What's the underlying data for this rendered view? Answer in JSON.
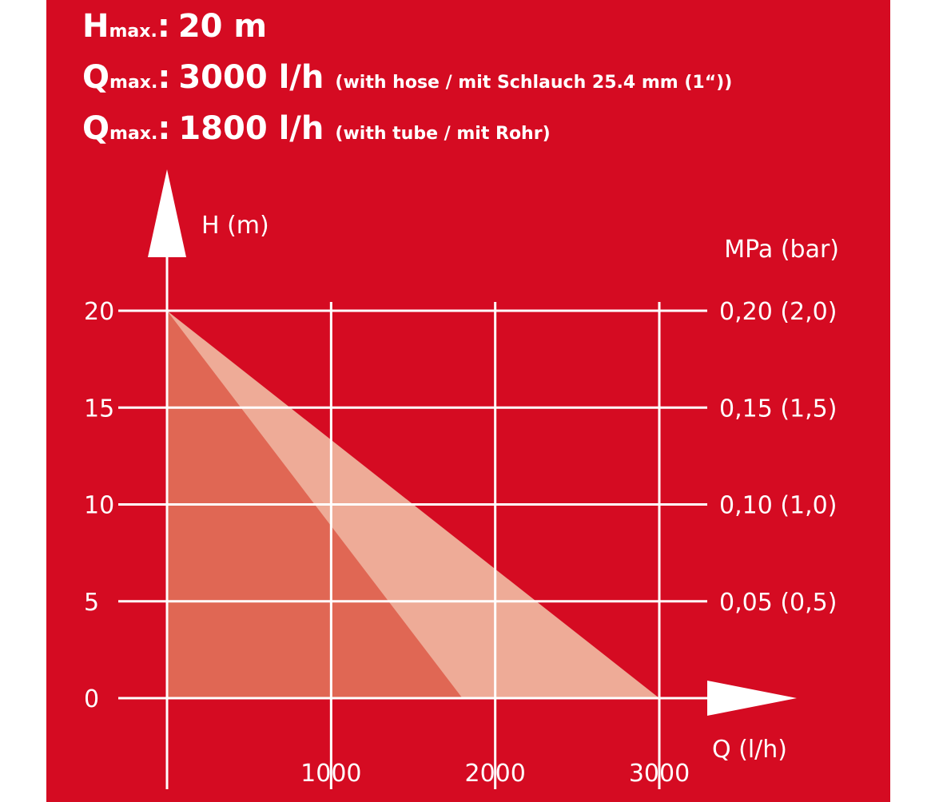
{
  "specs": {
    "hmax": {
      "symbol": "H",
      "sub": "max.",
      "colon": ":",
      "value": "20 m",
      "note": ""
    },
    "qmax_hose": {
      "symbol": "Q",
      "sub": "max.",
      "colon": ":",
      "value": "3000 l/h",
      "note": "(with hose / mit Schlauch 25.4 mm (1“))"
    },
    "qmax_tube": {
      "symbol": "Q",
      "sub": "max.",
      "colon": ":",
      "value": "1800 l/h",
      "note": "(with tube / mit Rohr)"
    }
  },
  "colors": {
    "background": "#d50b22",
    "foreground": "#ffffff",
    "area_tube": "#e06754",
    "area_hose": "#eeab97"
  },
  "chart_data": {
    "type": "area",
    "xlabel": "Q (l/h)",
    "ylabel": "H (m)",
    "y2label": "MPa (bar)",
    "xlim": [
      0,
      3000
    ],
    "ylim": [
      0,
      20
    ],
    "grid": true,
    "x_ticks": [
      {
        "value": 1000,
        "label": "1000"
      },
      {
        "value": 2000,
        "label": "2000"
      },
      {
        "value": 3000,
        "label": "3000"
      }
    ],
    "y_ticks": [
      {
        "value": 0,
        "label": "0"
      },
      {
        "value": 5,
        "label": "5"
      },
      {
        "value": 10,
        "label": "10"
      },
      {
        "value": 15,
        "label": "15"
      },
      {
        "value": 20,
        "label": "20"
      }
    ],
    "y2_ticks": [
      {
        "value": 5,
        "label": "0,05 (0,5)"
      },
      {
        "value": 10,
        "label": "0,10 (1,0)"
      },
      {
        "value": 15,
        "label": "0,15 (1,5)"
      },
      {
        "value": 20,
        "label": "0,20 (2,0)"
      }
    ],
    "series": [
      {
        "key": "hose",
        "points": [
          [
            0,
            20
          ],
          [
            3000,
            0
          ]
        ]
      },
      {
        "key": "tube",
        "points": [
          [
            0,
            20
          ],
          [
            1800,
            0
          ]
        ]
      }
    ]
  }
}
